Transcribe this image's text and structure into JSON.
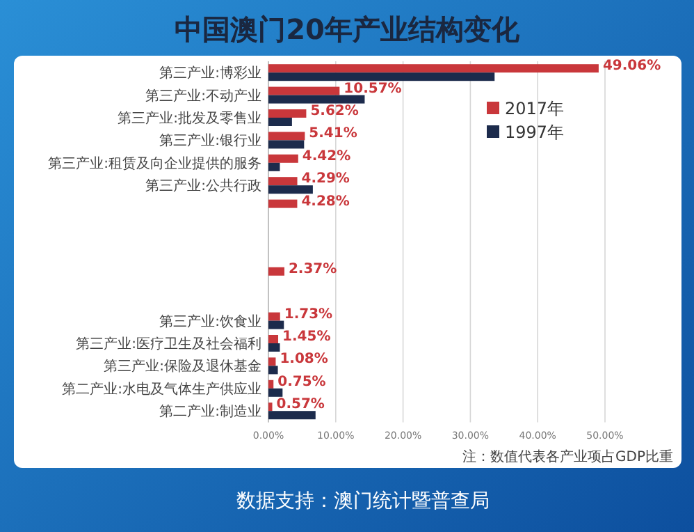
{
  "chart_data": {
    "type": "bar",
    "orientation": "horizontal",
    "title": "中国澳门20年产业结构变化",
    "categories": [
      "第三产业:博彩业",
      "第三产业:不动产业",
      "第三产业:批发及零售业",
      "第三产业:银行业",
      "第三产业:租赁及向企业提供的服务",
      "第三产业:公共行政",
      null,
      null,
      null,
      null,
      null,
      "第三产业:饮食业",
      "第三产业:医疗卫生及社会福利",
      "第三产业:保险及退休基金",
      "第二产业:水电及气体生产供应业",
      "第二产业:制造业"
    ],
    "series": [
      {
        "name": "2017年",
        "color": "#c9373b",
        "values": [
          49.06,
          10.57,
          5.62,
          5.41,
          4.42,
          4.29,
          4.28,
          null,
          null,
          2.37,
          null,
          1.73,
          1.45,
          1.08,
          0.75,
          0.57
        ],
        "value_labels": [
          "49.06%",
          "10.57%",
          "5.62%",
          "5.41%",
          "4.42%",
          "4.29%",
          "4.28%",
          null,
          null,
          "2.37%",
          null,
          "1.73%",
          "1.45%",
          "1.08%",
          "0.75%",
          "0.57%"
        ]
      },
      {
        "name": "1997年",
        "color": "#1c2b4c",
        "values": [
          33.6,
          14.3,
          3.5,
          5.3,
          1.7,
          6.6,
          null,
          null,
          null,
          null,
          null,
          2.3,
          1.7,
          1.4,
          2.1,
          7.0
        ]
      }
    ],
    "xlim": [
      0,
      50
    ],
    "xticks": [
      {
        "value": 0,
        "label": "0.00%"
      },
      {
        "value": 10,
        "label": "10.00%"
      },
      {
        "value": 20,
        "label": "20.00%"
      },
      {
        "value": 30,
        "label": "30.00%"
      },
      {
        "value": 40,
        "label": "40.00%"
      },
      {
        "value": 50,
        "label": "50.00%"
      }
    ],
    "grid": "x",
    "legend": "top right",
    "annotations": [
      "注：数值代表各产业项占GDP比重",
      "数据支持：澳门统计暨普查局"
    ]
  }
}
